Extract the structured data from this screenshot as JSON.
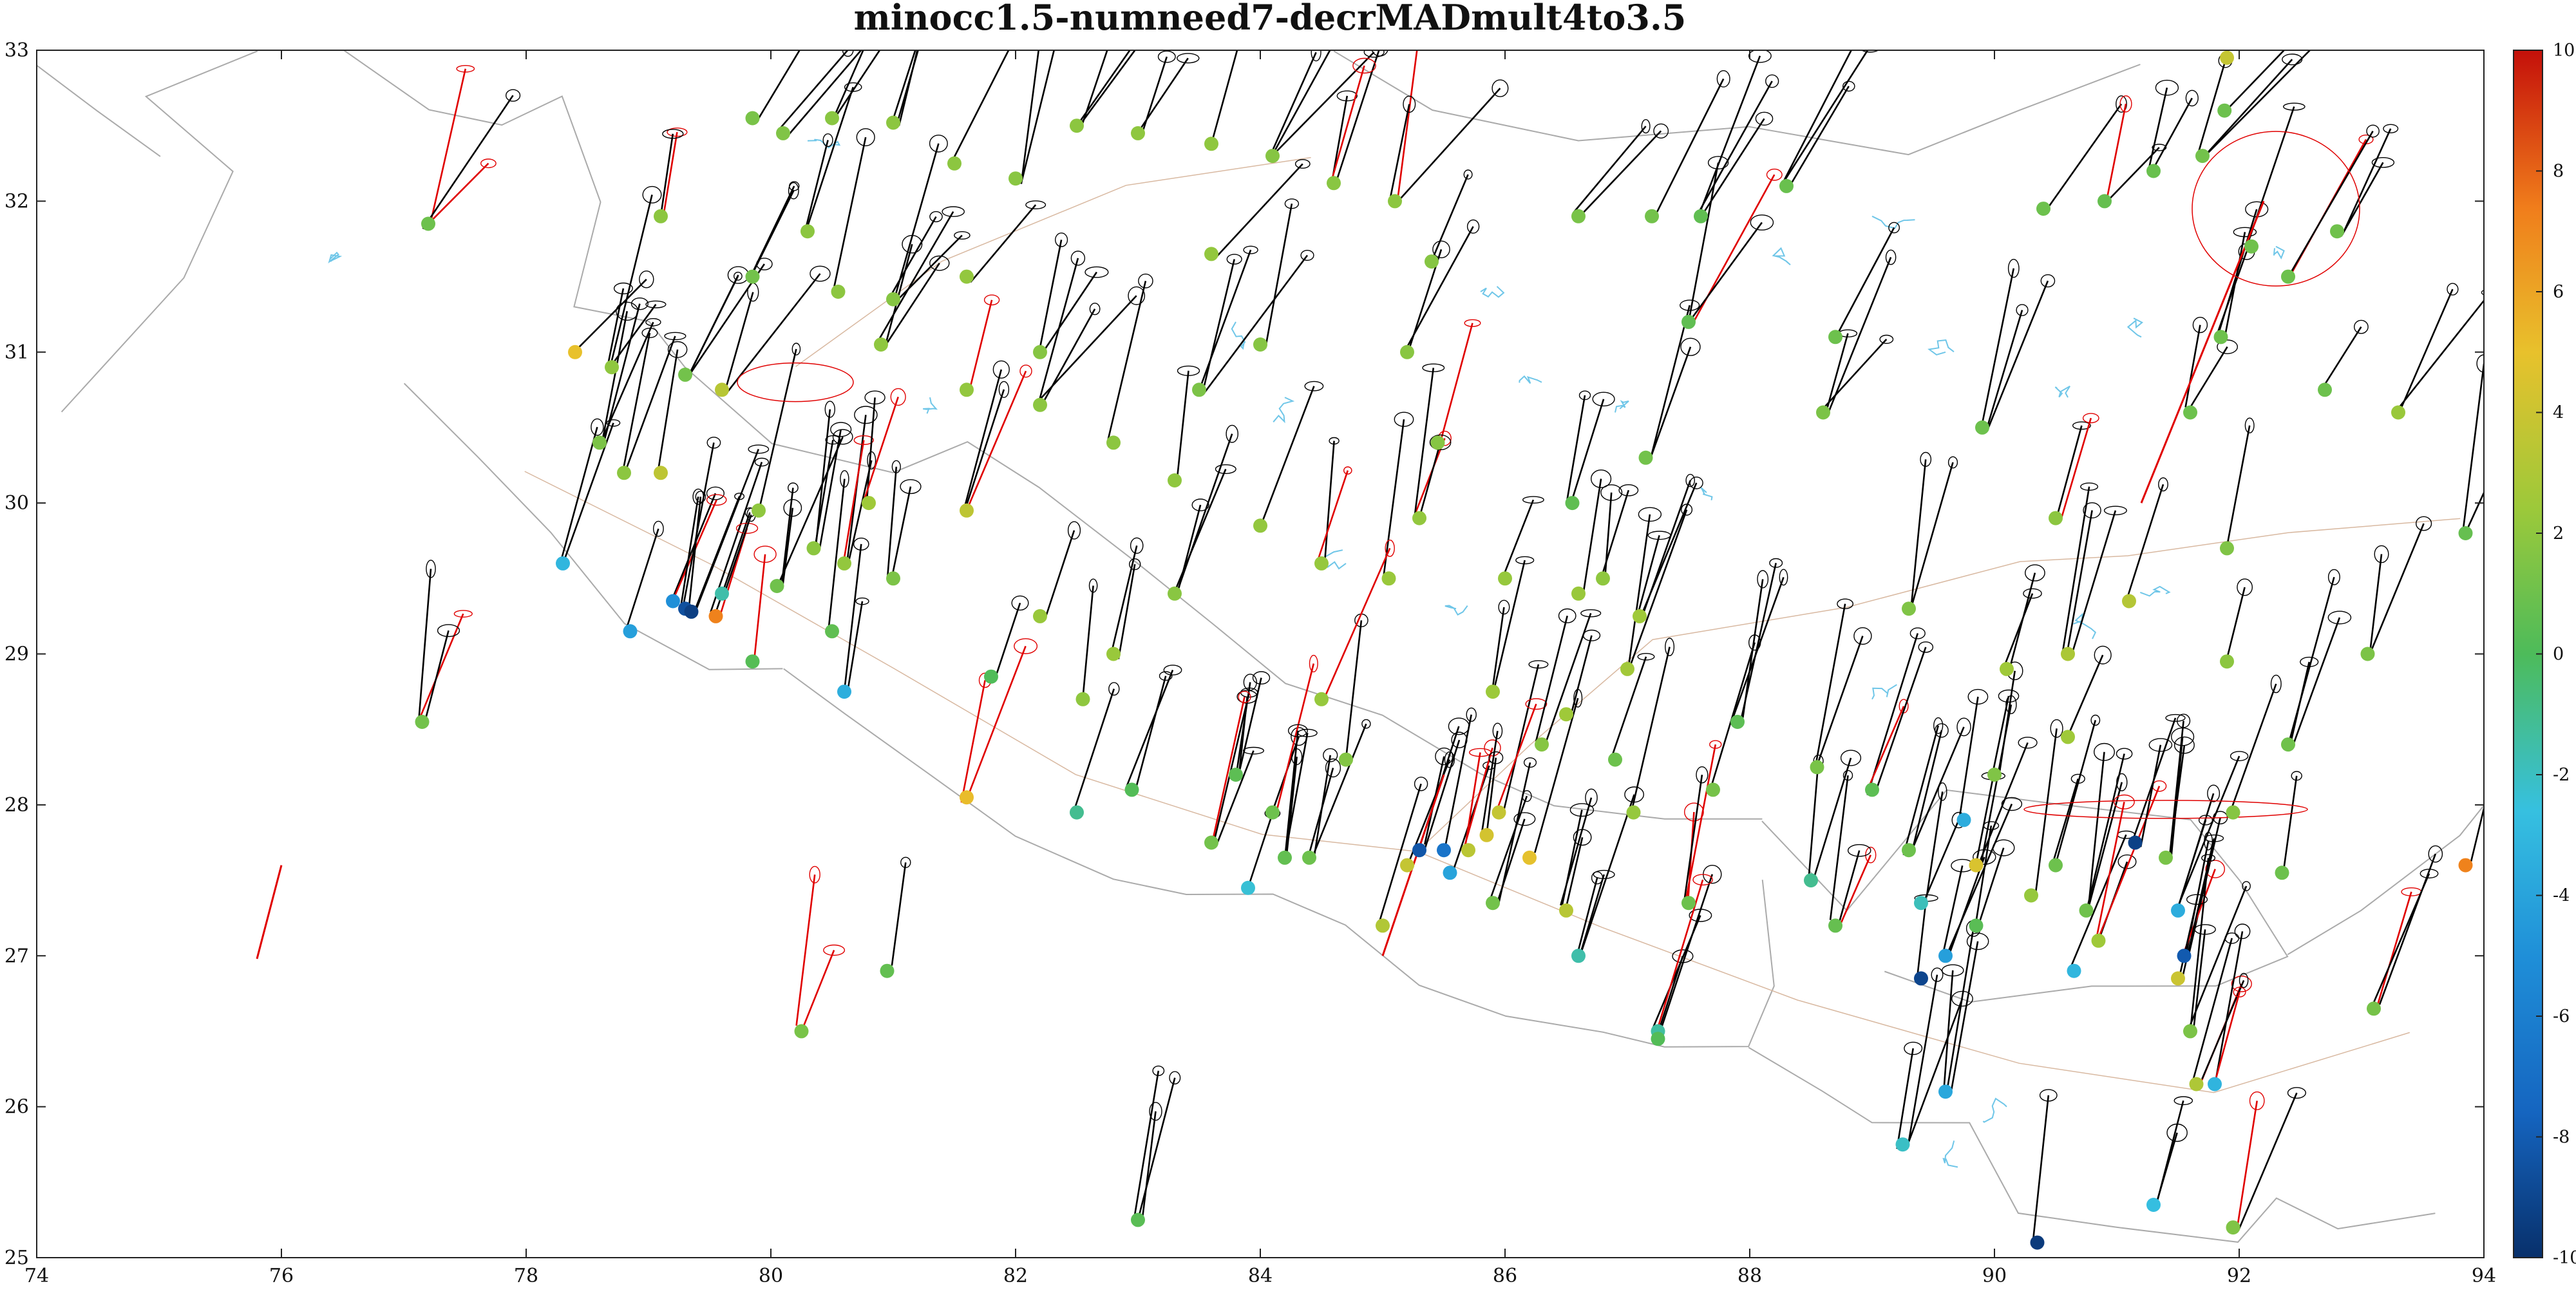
{
  "chart_data": {
    "type": "scatter",
    "title": "minocc1.5-numneed7-decrMADmult4to3.5",
    "xlim": [
      74,
      94
    ],
    "ylim": [
      25,
      33
    ],
    "xticks": [
      74,
      76,
      78,
      80,
      82,
      84,
      86,
      88,
      90,
      92,
      94
    ],
    "yticks": [
      25,
      26,
      27,
      28,
      29,
      30,
      31,
      32,
      33
    ],
    "grid": false,
    "colorbar": {
      "range": [
        -10,
        10
      ],
      "ticks": [
        10,
        8,
        6,
        4,
        2,
        0,
        -2,
        -4,
        -6,
        -8,
        -10
      ],
      "colormap": "jet"
    },
    "colors": {
      "vector_normal": "#000000",
      "vector_outlier": "#e00000",
      "border_line": "#aaaaaa",
      "river_line": "#6fc6e8",
      "road_line": "#d8b8a0"
    },
    "points": [
      {
        "lon": 79.85,
        "lat": 32.55,
        "v": 1.4
      },
      {
        "lon": 80.1,
        "lat": 32.45,
        "v": 1.6
      },
      {
        "lon": 80.5,
        "lat": 32.55,
        "v": 1.9
      },
      {
        "lon": 81.0,
        "lat": 32.52,
        "v": 2.0
      },
      {
        "lon": 81.5,
        "lat": 32.25,
        "v": 2.0
      },
      {
        "lon": 82.0,
        "lat": 32.15,
        "v": 1.9
      },
      {
        "lon": 82.5,
        "lat": 32.5,
        "v": 2.0
      },
      {
        "lon": 83.0,
        "lat": 32.45,
        "v": 2.1
      },
      {
        "lon": 83.6,
        "lat": 32.38,
        "v": 2.1
      },
      {
        "lon": 84.1,
        "lat": 32.3,
        "v": 1.8
      },
      {
        "lon": 84.6,
        "lat": 32.12,
        "v": 1.9
      },
      {
        "lon": 85.1,
        "lat": 32.0,
        "v": 2.0
      },
      {
        "lon": 85.4,
        "lat": 31.6,
        "v": 1.8
      },
      {
        "lon": 85.2,
        "lat": 31.0,
        "v": 1.9
      },
      {
        "lon": 85.45,
        "lat": 30.4,
        "v": 1.8
      },
      {
        "lon": 85.3,
        "lat": 29.9,
        "v": 2.2
      },
      {
        "lon": 85.05,
        "lat": 29.5,
        "v": 2.4
      },
      {
        "lon": 84.5,
        "lat": 29.6,
        "v": 2.3
      },
      {
        "lon": 84.0,
        "lat": 29.85,
        "v": 2.2
      },
      {
        "lon": 83.3,
        "lat": 30.15,
        "v": 2.1
      },
      {
        "lon": 82.8,
        "lat": 30.4,
        "v": 2.0
      },
      {
        "lon": 82.2,
        "lat": 30.65,
        "v": 2.0
      },
      {
        "lon": 81.6,
        "lat": 30.75,
        "v": 2.2
      },
      {
        "lon": 80.9,
        "lat": 31.05,
        "v": 2.1
      },
      {
        "lon": 80.55,
        "lat": 31.4,
        "v": 2.0
      },
      {
        "lon": 80.3,
        "lat": 31.8,
        "v": 2.0
      },
      {
        "lon": 86.0,
        "lat": 29.5,
        "v": 2.3
      },
      {
        "lon": 86.6,
        "lat": 29.4,
        "v": 2.4
      },
      {
        "lon": 87.1,
        "lat": 29.25,
        "v": 2.6
      },
      {
        "lon": 87.0,
        "lat": 28.9,
        "v": 2.7
      },
      {
        "lon": 86.5,
        "lat": 28.6,
        "v": 2.6
      },
      {
        "lon": 85.9,
        "lat": 28.75,
        "v": 2.5
      },
      {
        "lon": 86.6,
        "lat": 31.9,
        "v": 1.4
      },
      {
        "lon": 87.2,
        "lat": 31.9,
        "v": 1.2
      },
      {
        "lon": 87.6,
        "lat": 31.9,
        "v": 0.6
      },
      {
        "lon": 88.3,
        "lat": 32.1,
        "v": 0.9
      },
      {
        "lon": 90.4,
        "lat": 31.95,
        "v": 1.0
      },
      {
        "lon": 90.9,
        "lat": 32.0,
        "v": 0.8
      },
      {
        "lon": 91.3,
        "lat": 32.2,
        "v": 0.9
      },
      {
        "lon": 91.7,
        "lat": 32.3,
        "v": 1.2
      },
      {
        "lon": 92.1,
        "lat": 31.7,
        "v": 1.1
      },
      {
        "lon": 92.4,
        "lat": 31.5,
        "v": 1.0
      },
      {
        "lon": 92.8,
        "lat": 31.8,
        "v": 1.1
      },
      {
        "lon": 91.85,
        "lat": 31.1,
        "v": 1.0
      },
      {
        "lon": 91.6,
        "lat": 30.6,
        "v": 1.0
      },
      {
        "lon": 91.9,
        "lat": 32.95,
        "v": 3.8
      },
      {
        "lon": 91.88,
        "lat": 32.6,
        "v": 1.0
      },
      {
        "lon": 90.5,
        "lat": 29.9,
        "v": 2.0
      },
      {
        "lon": 90.6,
        "lat": 29.0,
        "v": 3.0
      },
      {
        "lon": 90.1,
        "lat": 28.9,
        "v": 2.6
      },
      {
        "lon": 79.1,
        "lat": 31.9,
        "v": 2.0
      },
      {
        "lon": 77.2,
        "lat": 31.85,
        "v": 1.0
      },
      {
        "lon": 79.85,
        "lat": 31.5,
        "v": 1.2
      },
      {
        "lon": 81.6,
        "lat": 31.5,
        "v": 2.2
      },
      {
        "lon": 83.6,
        "lat": 31.65,
        "v": 2.2
      },
      {
        "lon": 84.0,
        "lat": 31.05,
        "v": 1.8
      },
      {
        "lon": 83.5,
        "lat": 30.75,
        "v": 1.5
      },
      {
        "lon": 82.2,
        "lat": 31.0,
        "v": 1.8
      },
      {
        "lon": 78.4,
        "lat": 31.0,
        "v": 5.0
      },
      {
        "lon": 78.7,
        "lat": 30.9,
        "v": 2.1
      },
      {
        "lon": 79.3,
        "lat": 30.85,
        "v": 1.2
      },
      {
        "lon": 79.6,
        "lat": 30.75,
        "v": 3.4
      },
      {
        "lon": 78.8,
        "lat": 30.2,
        "v": 2.0
      },
      {
        "lon": 79.1,
        "lat": 30.2,
        "v": 3.6
      },
      {
        "lon": 78.6,
        "lat": 30.4,
        "v": 1.5
      },
      {
        "lon": 78.3,
        "lat": 29.6,
        "v": -3.0
      },
      {
        "lon": 78.85,
        "lat": 29.15,
        "v": -4.2
      },
      {
        "lon": 79.2,
        "lat": 29.35,
        "v": -5.0
      },
      {
        "lon": 79.3,
        "lat": 29.3,
        "v": -8.5
      },
      {
        "lon": 79.35,
        "lat": 29.28,
        "v": -9.3
      },
      {
        "lon": 79.55,
        "lat": 29.25,
        "v": 7.3
      },
      {
        "lon": 79.6,
        "lat": 29.4,
        "v": -1.5
      },
      {
        "lon": 79.9,
        "lat": 29.95,
        "v": 2.1
      },
      {
        "lon": 80.05,
        "lat": 29.45,
        "v": 1.1
      },
      {
        "lon": 80.35,
        "lat": 29.7,
        "v": 2.0
      },
      {
        "lon": 80.6,
        "lat": 29.6,
        "v": 2.2
      },
      {
        "lon": 80.5,
        "lat": 29.15,
        "v": 0.6
      },
      {
        "lon": 80.6,
        "lat": 28.75,
        "v": -3.4
      },
      {
        "lon": 79.85,
        "lat": 28.95,
        "v": 0.3
      },
      {
        "lon": 81.0,
        "lat": 29.5,
        "v": 1.5
      },
      {
        "lon": 81.6,
        "lat": 29.95,
        "v": 3.6
      },
      {
        "lon": 82.2,
        "lat": 29.25,
        "v": 2.4
      },
      {
        "lon": 80.8,
        "lat": 30.0,
        "v": 2.6
      },
      {
        "lon": 81.8,
        "lat": 28.85,
        "v": 0.1
      },
      {
        "lon": 81.6,
        "lat": 28.05,
        "v": 5.2
      },
      {
        "lon": 82.5,
        "lat": 27.95,
        "v": -1.0
      },
      {
        "lon": 82.95,
        "lat": 28.1,
        "v": 0.2
      },
      {
        "lon": 82.55,
        "lat": 28.7,
        "v": 2.1
      },
      {
        "lon": 82.8,
        "lat": 29.0,
        "v": 2.4
      },
      {
        "lon": 83.3,
        "lat": 29.4,
        "v": 1.9
      },
      {
        "lon": 83.8,
        "lat": 28.2,
        "v": 0.5
      },
      {
        "lon": 83.6,
        "lat": 27.75,
        "v": 1.2
      },
      {
        "lon": 84.1,
        "lat": 27.95,
        "v": 1.0
      },
      {
        "lon": 83.9,
        "lat": 27.45,
        "v": -2.3
      },
      {
        "lon": 84.2,
        "lat": 27.65,
        "v": 0.7
      },
      {
        "lon": 84.4,
        "lat": 27.65,
        "v": 1.0
      },
      {
        "lon": 84.7,
        "lat": 28.3,
        "v": 1.7
      },
      {
        "lon": 84.5,
        "lat": 28.7,
        "v": 2.3
      },
      {
        "lon": 85.0,
        "lat": 27.2,
        "v": 3.2
      },
      {
        "lon": 85.2,
        "lat": 27.6,
        "v": 3.8
      },
      {
        "lon": 85.3,
        "lat": 27.7,
        "v": -8.2
      },
      {
        "lon": 85.5,
        "lat": 27.7,
        "v": -6.6
      },
      {
        "lon": 85.55,
        "lat": 27.55,
        "v": -4.0
      },
      {
        "lon": 85.7,
        "lat": 27.7,
        "v": 3.5
      },
      {
        "lon": 85.85,
        "lat": 27.8,
        "v": 4.3
      },
      {
        "lon": 85.95,
        "lat": 27.95,
        "v": 3.8
      },
      {
        "lon": 86.2,
        "lat": 27.65,
        "v": 4.9
      },
      {
        "lon": 85.9,
        "lat": 27.35,
        "v": 1.2
      },
      {
        "lon": 86.5,
        "lat": 27.3,
        "v": 3.4
      },
      {
        "lon": 86.6,
        "lat": 27.0,
        "v": -1.5
      },
      {
        "lon": 86.3,
        "lat": 28.4,
        "v": 1.8
      },
      {
        "lon": 86.9,
        "lat": 28.3,
        "v": 1.0
      },
      {
        "lon": 87.05,
        "lat": 27.95,
        "v": 2.3
      },
      {
        "lon": 87.5,
        "lat": 27.35,
        "v": 1.0
      },
      {
        "lon": 87.25,
        "lat": 26.5,
        "v": -1.3
      },
      {
        "lon": 87.25,
        "lat": 26.45,
        "v": 0.2
      },
      {
        "lon": 87.9,
        "lat": 28.55,
        "v": 0.5
      },
      {
        "lon": 88.55,
        "lat": 28.25,
        "v": 1.4
      },
      {
        "lon": 88.5,
        "lat": 27.5,
        "v": -1.0
      },
      {
        "lon": 88.7,
        "lat": 27.2,
        "v": 0.8
      },
      {
        "lon": 89.0,
        "lat": 28.1,
        "v": 0.5
      },
      {
        "lon": 89.3,
        "lat": 27.7,
        "v": 1.0
      },
      {
        "lon": 89.4,
        "lat": 27.35,
        "v": -1.8
      },
      {
        "lon": 89.4,
        "lat": 26.85,
        "v": -9.0
      },
      {
        "lon": 89.6,
        "lat": 27.0,
        "v": -4.2
      },
      {
        "lon": 89.75,
        "lat": 27.9,
        "v": -3.5
      },
      {
        "lon": 89.85,
        "lat": 27.6,
        "v": 4.5
      },
      {
        "lon": 89.85,
        "lat": 27.2,
        "v": 0.4
      },
      {
        "lon": 90.0,
        "lat": 28.2,
        "v": 1.6
      },
      {
        "lon": 89.25,
        "lat": 25.75,
        "v": -2.0
      },
      {
        "lon": 89.6,
        "lat": 26.1,
        "v": -3.8
      },
      {
        "lon": 90.35,
        "lat": 25.1,
        "v": -9.5
      },
      {
        "lon": 90.3,
        "lat": 27.4,
        "v": 2.3
      },
      {
        "lon": 90.5,
        "lat": 27.6,
        "v": 1.0
      },
      {
        "lon": 90.65,
        "lat": 26.9,
        "v": -3.0
      },
      {
        "lon": 90.75,
        "lat": 27.3,
        "v": 1.1
      },
      {
        "lon": 90.85,
        "lat": 27.1,
        "v": 2.6
      },
      {
        "lon": 91.15,
        "lat": 27.75,
        "v": -9.2
      },
      {
        "lon": 91.4,
        "lat": 27.65,
        "v": 1.4
      },
      {
        "lon": 91.5,
        "lat": 27.3,
        "v": -3.5
      },
      {
        "lon": 91.55,
        "lat": 27.0,
        "v": -8.0
      },
      {
        "lon": 91.5,
        "lat": 26.85,
        "v": 4.0
      },
      {
        "lon": 91.65,
        "lat": 26.15,
        "v": 3.1
      },
      {
        "lon": 91.8,
        "lat": 26.15,
        "v": -3.1
      },
      {
        "lon": 91.6,
        "lat": 26.5,
        "v": 1.5
      },
      {
        "lon": 91.3,
        "lat": 25.35,
        "v": -2.6
      },
      {
        "lon": 91.95,
        "lat": 25.2,
        "v": 1.6
      },
      {
        "lon": 91.95,
        "lat": 27.95,
        "v": 1.8
      },
      {
        "lon": 92.35,
        "lat": 27.55,
        "v": 1.0
      },
      {
        "lon": 92.4,
        "lat": 28.4,
        "v": 1.1
      },
      {
        "lon": 93.1,
        "lat": 26.65,
        "v": 1.3
      },
      {
        "lon": 93.05,
        "lat": 29.0,
        "v": 1.5
      },
      {
        "lon": 93.3,
        "lat": 30.6,
        "v": 2.4
      },
      {
        "lon": 93.85,
        "lat": 27.6,
        "v": 7.3
      },
      {
        "lon": 93.85,
        "lat": 29.8,
        "v": 0.8
      },
      {
        "lon": 92.7,
        "lat": 30.75,
        "v": 1.0
      },
      {
        "lon": 91.9,
        "lat": 29.7,
        "v": 1.6
      },
      {
        "lon": 91.9,
        "lat": 28.95,
        "v": 2.0
      },
      {
        "lon": 90.6,
        "lat": 28.45,
        "v": 2.6
      },
      {
        "lon": 91.1,
        "lat": 29.35,
        "v": 3.3
      },
      {
        "lon": 89.9,
        "lat": 30.5,
        "v": 1.0
      },
      {
        "lon": 89.3,
        "lat": 29.3,
        "v": 1.6
      },
      {
        "lon": 88.6,
        "lat": 30.6,
        "v": 1.5
      },
      {
        "lon": 88.7,
        "lat": 31.1,
        "v": 1.0
      },
      {
        "lon": 87.5,
        "lat": 31.2,
        "v": 0.6
      },
      {
        "lon": 87.15,
        "lat": 30.3,
        "v": 1.2
      },
      {
        "lon": 86.55,
        "lat": 30.0,
        "v": 0.6
      },
      {
        "lon": 86.8,
        "lat": 29.5,
        "v": 2.1
      },
      {
        "lon": 87.7,
        "lat": 28.1,
        "v": 1.3
      },
      {
        "lon": 77.15,
        "lat": 28.55,
        "v": 1.2
      },
      {
        "lon": 80.95,
        "lat": 26.9,
        "v": 0.7
      },
      {
        "lon": 80.25,
        "lat": 26.5,
        "v": 1.4
      },
      {
        "lon": 83.0,
        "lat": 25.25,
        "v": 0.4
      },
      {
        "lon": 81.0,
        "lat": 31.35,
        "v": 1.8
      }
    ]
  }
}
